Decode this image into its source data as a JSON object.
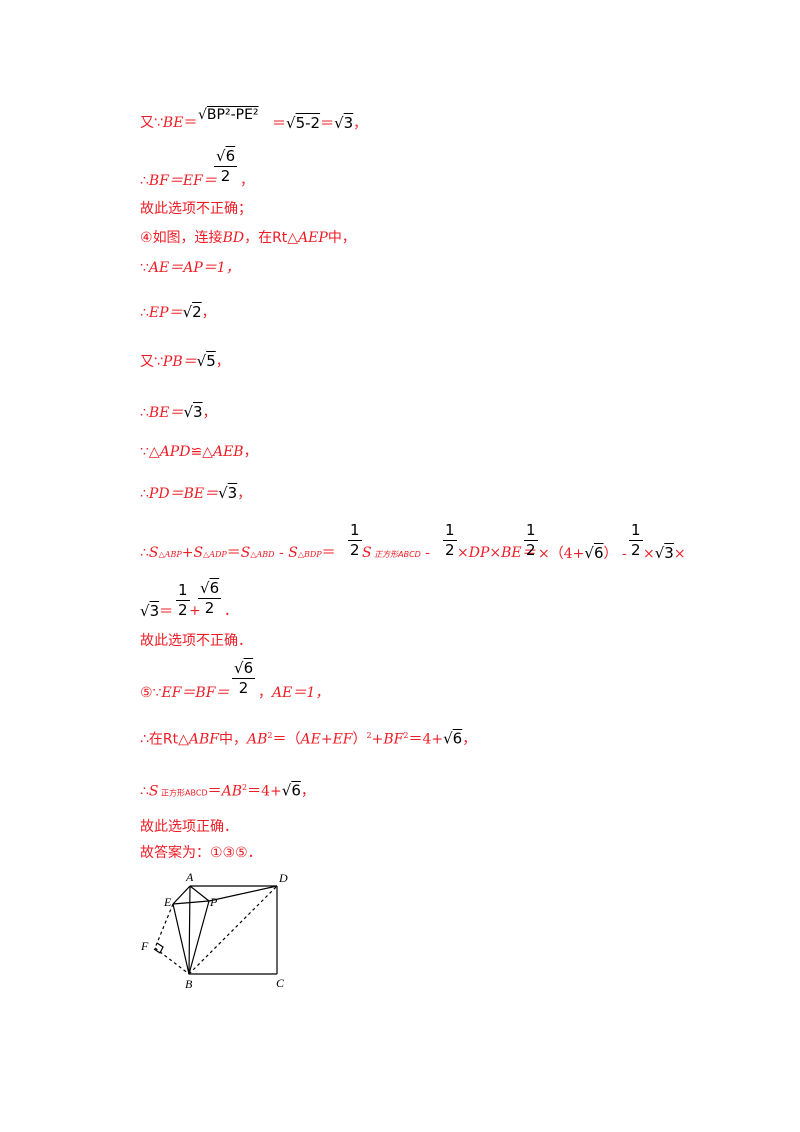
{
  "line1": {
    "prefix": "又∵",
    "lhs": "BE",
    "eq": "＝",
    "rad1": "BP²-PE²",
    "eq2": "＝",
    "rad2": "5-2",
    "eq3": "＝",
    "rad3": "3",
    "end": "，"
  },
  "line2": {
    "prefix": "∴",
    "lhs": "BF＝EF＝",
    "frac_num": "6",
    "frac_den": "2",
    "end": "，"
  },
  "line3": {
    "text": "故此选项不正确；"
  },
  "line4": {
    "circle": "④",
    "text1": "如图，连接",
    "bd": "BD",
    "text2": "，在Rt△",
    "aep": "AEP",
    "text3": "中，"
  },
  "line5": {
    "prefix": "∵",
    "text": "AE＝AP＝1，"
  },
  "line6": {
    "prefix": "∴",
    "lhs": "EP＝",
    "rad": "2",
    "end": "，"
  },
  "line7": {
    "prefix": "又∵",
    "lhs": "PB＝",
    "rad": "5",
    "end": "，"
  },
  "line8": {
    "prefix": "∴",
    "lhs": "BE＝",
    "rad": "3",
    "end": "，"
  },
  "line9": {
    "prefix": "∵△",
    "t1": "APD",
    "cong": "≌△",
    "t2": "AEB",
    "end": "，"
  },
  "line10": {
    "prefix": "∴",
    "lhs": "PD＝BE＝",
    "rad": "3",
    "end": "，"
  },
  "line11": {
    "prefix": "∴",
    "s1": "S",
    "s1sub": "△ABP",
    "plus": "+",
    "s2": "S",
    "s2sub": "△ADP",
    "eq1": "＝",
    "s3": "S",
    "s3sub": "△ABD",
    "minus1": " - ",
    "s4": "S",
    "s4sub": "△BDP",
    "eq2": "＝",
    "f1num": "1",
    "f1den": "2",
    "s5": "S",
    "s5sub": " 正方形ABCD",
    "minus2": " - ",
    "f2num": "1",
    "f2den": "2",
    "t1": "×DP×BE＝",
    "f3num": "1",
    "f3den": "2",
    "t2": "×（4+",
    "rad6": "6",
    "t3": "） - ",
    "f4num": "1",
    "f4den": "2",
    "t4": "×",
    "rad3": "3",
    "t5": "×"
  },
  "line12": {
    "rad": "3",
    "eq": "＝",
    "f1num": "1",
    "f1den": "2",
    "plus": "+",
    "f2num": "6",
    "f2den": "2",
    "end": "．"
  },
  "line13": {
    "text": "故此选项不正确．"
  },
  "line14": {
    "circle": "⑤",
    "prefix": "∵",
    "lhs": "EF＝BF＝",
    "fnum": "6",
    "fden": "2",
    "t1": "，",
    "ae": "AE＝1，"
  },
  "line15": {
    "prefix": "∴在Rt△",
    "abf": "ABF",
    "t1": "中，",
    "ab": "AB",
    "sq": "2",
    "t2": "＝（",
    "aeef": "AE+EF",
    "t3": "）",
    "sq2": "2",
    "t4": "+",
    "bf": "BF",
    "sq3": "2",
    "t5": "＝4+",
    "rad": "6",
    "end": "，"
  },
  "line16": {
    "prefix": "∴",
    "s": "S",
    "sub": " 正方形ABCD",
    "eq": "＝",
    "ab": "AB",
    "sq": "2",
    "t": "＝4+",
    "rad": "6",
    "end": "，"
  },
  "line17": {
    "text": "故此选项正确．"
  },
  "line18": {
    "text": "故答案为：①③⑤．"
  },
  "figure": {
    "labels": {
      "A": "A",
      "D": "D",
      "E": "E",
      "P": "P",
      "F": "F",
      "B": "B",
      "C": "C"
    }
  }
}
